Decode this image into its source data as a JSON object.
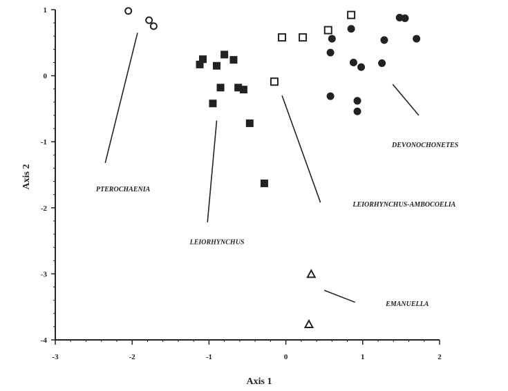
{
  "chart_data": {
    "type": "scatter",
    "xlabel": "Axis 1",
    "ylabel": "Axis 2",
    "xlim": [
      -3,
      2
    ],
    "ylim": [
      -4,
      1
    ],
    "x_ticks": [
      -3,
      -2,
      -1,
      0,
      1,
      2
    ],
    "y_ticks": [
      1,
      0,
      -1,
      -2,
      -3,
      -4
    ],
    "x_tick_labels": [
      "-3",
      "-2",
      "-1",
      "0",
      "1",
      "2"
    ],
    "y_tick_labels": [
      "1",
      "0",
      "-1",
      "-2",
      "-3",
      "-4"
    ],
    "grid": false,
    "series": [
      {
        "name": "PTEROCHAENIA",
        "marker": "open-circle",
        "points": [
          [
            -2.05,
            0.98
          ],
          [
            -1.78,
            0.84
          ],
          [
            -1.72,
            0.75
          ]
        ],
        "leader": [
          [
            -1.93,
            0.65
          ],
          [
            -2.35,
            -1.32
          ]
        ],
        "label_at": [
          -2.47,
          -1.75
        ]
      },
      {
        "name": "LEIORHYNCHUS",
        "marker": "filled-square",
        "points": [
          [
            -1.08,
            0.25
          ],
          [
            -1.12,
            0.17
          ],
          [
            -0.9,
            0.15
          ],
          [
            -0.8,
            0.32
          ],
          [
            -0.68,
            0.24
          ],
          [
            -0.85,
            -0.18
          ],
          [
            -0.62,
            -0.18
          ],
          [
            -0.55,
            -0.21
          ],
          [
            -0.95,
            -0.42
          ],
          [
            -0.47,
            -0.72
          ],
          [
            -0.28,
            -1.63
          ]
        ],
        "leader": [
          [
            -0.9,
            -0.68
          ],
          [
            -1.02,
            -2.22
          ]
        ],
        "label_at": [
          -1.25,
          -2.55
        ]
      },
      {
        "name": "LEIORHYNCHUS-AMBOCOELIA",
        "marker": "open-square",
        "points": [
          [
            -0.05,
            0.58
          ],
          [
            0.22,
            0.58
          ],
          [
            0.55,
            0.69
          ],
          [
            0.85,
            0.92
          ],
          [
            -0.15,
            -0.09
          ]
        ],
        "leader": [
          [
            -0.05,
            -0.3
          ],
          [
            0.45,
            -1.92
          ]
        ],
        "label_at": [
          0.87,
          -1.98
        ]
      },
      {
        "name": "DEVONOCHONETES",
        "marker": "filled-circle",
        "points": [
          [
            0.6,
            0.56
          ],
          [
            0.85,
            0.71
          ],
          [
            1.28,
            0.54
          ],
          [
            1.48,
            0.88
          ],
          [
            1.55,
            0.87
          ],
          [
            1.7,
            0.56
          ],
          [
            0.58,
            0.35
          ],
          [
            0.88,
            0.2
          ],
          [
            0.98,
            0.13
          ],
          [
            1.25,
            0.19
          ],
          [
            0.58,
            -0.31
          ],
          [
            0.93,
            -0.38
          ],
          [
            0.93,
            -0.54
          ]
        ],
        "leader": [
          [
            1.39,
            -0.13
          ],
          [
            1.73,
            -0.6
          ]
        ],
        "label_at": [
          1.38,
          -1.08
        ]
      },
      {
        "name": "EMANUELLA",
        "marker": "open-triangle",
        "points": [
          [
            0.33,
            -3.01
          ],
          [
            0.3,
            -3.77
          ]
        ],
        "leader": [
          [
            0.5,
            -3.25
          ],
          [
            0.9,
            -3.43
          ]
        ],
        "label_at": [
          1.3,
          -3.49
        ]
      }
    ]
  }
}
